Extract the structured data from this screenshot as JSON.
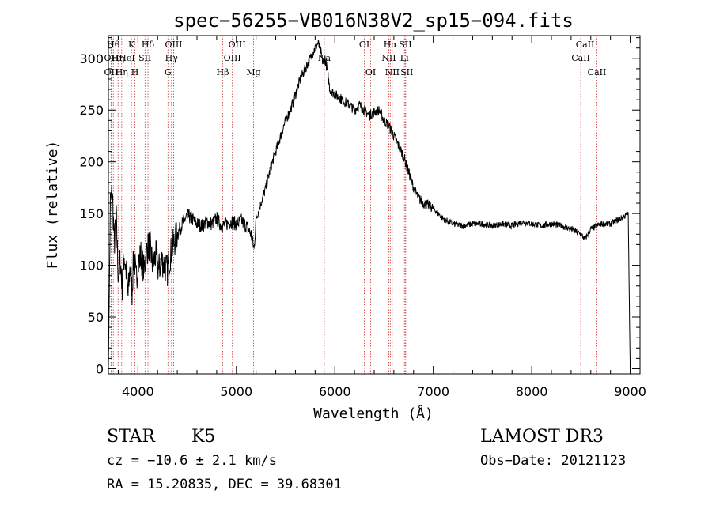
{
  "chart_data": {
    "type": "line",
    "title": "spec−56255−VB016N38V2_sp15−094.fits",
    "xlabel": "Wavelength (Å)",
    "ylabel": "Flux (relative)",
    "xlim": [
      3700,
      9100
    ],
    "ylim": [
      -5,
      322
    ],
    "x_ticks": [
      4000,
      5000,
      6000,
      7000,
      8000,
      9000
    ],
    "y_ticks": [
      0,
      50,
      100,
      150,
      200,
      250,
      300
    ],
    "grid": false,
    "legend": "none",
    "series": [
      {
        "x": [
          3700,
          3720,
          3740,
          3760,
          3780,
          3800,
          3820,
          3840,
          3860,
          3880,
          3900,
          3920,
          3940,
          3960,
          3980,
          4000,
          4030,
          4060,
          4090,
          4120,
          4150,
          4180,
          4210,
          4240,
          4270,
          4300,
          4330,
          4360,
          4400,
          4450,
          4500,
          4550,
          4600,
          4650,
          4700,
          4750,
          4800,
          4850,
          4900,
          4950,
          5000,
          5050,
          5100,
          5150,
          5180,
          5200,
          5250,
          5300,
          5350,
          5400,
          5450,
          5500,
          5550,
          5600,
          5650,
          5700,
          5750,
          5800,
          5830,
          5860,
          5880,
          5900,
          5920,
          5950,
          6000,
          6050,
          6100,
          6150,
          6200,
          6250,
          6300,
          6350,
          6400,
          6450,
          6500,
          6550,
          6600,
          6650,
          6700,
          6750,
          6800,
          6850,
          6900,
          6950,
          7000,
          7100,
          7200,
          7300,
          7400,
          7500,
          7600,
          7700,
          7800,
          7900,
          8000,
          8100,
          8200,
          8300,
          8400,
          8500,
          8540,
          8600,
          8700,
          8800,
          8900,
          8980,
          9000
        ],
        "y": [
          0,
          160,
          170,
          120,
          145,
          90,
          105,
          80,
          110,
          95,
          70,
          100,
          75,
          115,
          85,
          100,
          110,
          95,
          115,
          120,
          100,
          110,
          95,
          105,
          100,
          95,
          110,
          120,
          130,
          140,
          148,
          145,
          140,
          138,
          142,
          140,
          145,
          138,
          140,
          142,
          140,
          143,
          138,
          130,
          115,
          145,
          160,
          175,
          195,
          210,
          225,
          240,
          250,
          265,
          280,
          290,
          300,
          310,
          315,
          305,
          295,
          300,
          290,
          270,
          265,
          262,
          258,
          255,
          250,
          255,
          250,
          245,
          248,
          250,
          240,
          235,
          225,
          215,
          205,
          190,
          175,
          165,
          160,
          158,
          155,
          145,
          140,
          138,
          140,
          140,
          138,
          140,
          138,
          142,
          140,
          138,
          140,
          138,
          135,
          130,
          125,
          135,
          140,
          140,
          145,
          150,
          0
        ]
      }
    ],
    "line_labels": [
      {
        "x": 3750,
        "text": "Hθ",
        "row": 0
      },
      {
        "x": 3727,
        "text": "OII",
        "row": 1
      },
      {
        "x": 3727,
        "text": "OII",
        "row": 2
      },
      {
        "x": 3798,
        "text": "Hη",
        "row": 1
      },
      {
        "x": 3835,
        "text": "Hη",
        "row": 2
      },
      {
        "x": 3934,
        "text": "K",
        "row": 0
      },
      {
        "x": 3889,
        "text": "HeI",
        "row": 1
      },
      {
        "x": 3970,
        "text": "H",
        "row": 2
      },
      {
        "x": 4102,
        "text": "Hδ",
        "row": 0
      },
      {
        "x": 4072,
        "text": "SII",
        "row": 1
      },
      {
        "x": 4363,
        "text": "OIII",
        "row": 0
      },
      {
        "x": 4341,
        "text": "Hγ",
        "row": 1
      },
      {
        "x": 4305,
        "text": "G",
        "row": 2
      },
      {
        "x": 4861,
        "text": "Hβ",
        "row": 2
      },
      {
        "x": 5007,
        "text": "OIII",
        "row": 0
      },
      {
        "x": 4959,
        "text": "OIII",
        "row": 1
      },
      {
        "x": 5175,
        "text": "Mg",
        "row": 2
      },
      {
        "x": 5893,
        "text": "Na",
        "row": 1
      },
      {
        "x": 6300,
        "text": "OI",
        "row": 0
      },
      {
        "x": 6364,
        "text": "OI",
        "row": 2
      },
      {
        "x": 6563,
        "text": "Hα",
        "row": 0
      },
      {
        "x": 6548,
        "text": "NII",
        "row": 1
      },
      {
        "x": 6583,
        "text": "NII",
        "row": 2
      },
      {
        "x": 6717,
        "text": "SII",
        "row": 0
      },
      {
        "x": 6707,
        "text": "Li",
        "row": 1
      },
      {
        "x": 6731,
        "text": "SII",
        "row": 2
      },
      {
        "x": 8542,
        "text": "CaII",
        "row": 0
      },
      {
        "x": 8498,
        "text": "CaII",
        "row": 1
      },
      {
        "x": 8662,
        "text": "CaII",
        "row": 2
      }
    ]
  },
  "info": {
    "class": "STAR",
    "subclass": "K5",
    "survey": "LAMOST DR3",
    "cz": "cz = −10.6 ± 2.1 km/s",
    "obs_date": "Obs−Date: 20121123",
    "radec": "RA =  15.20835, DEC =  39.68301"
  }
}
